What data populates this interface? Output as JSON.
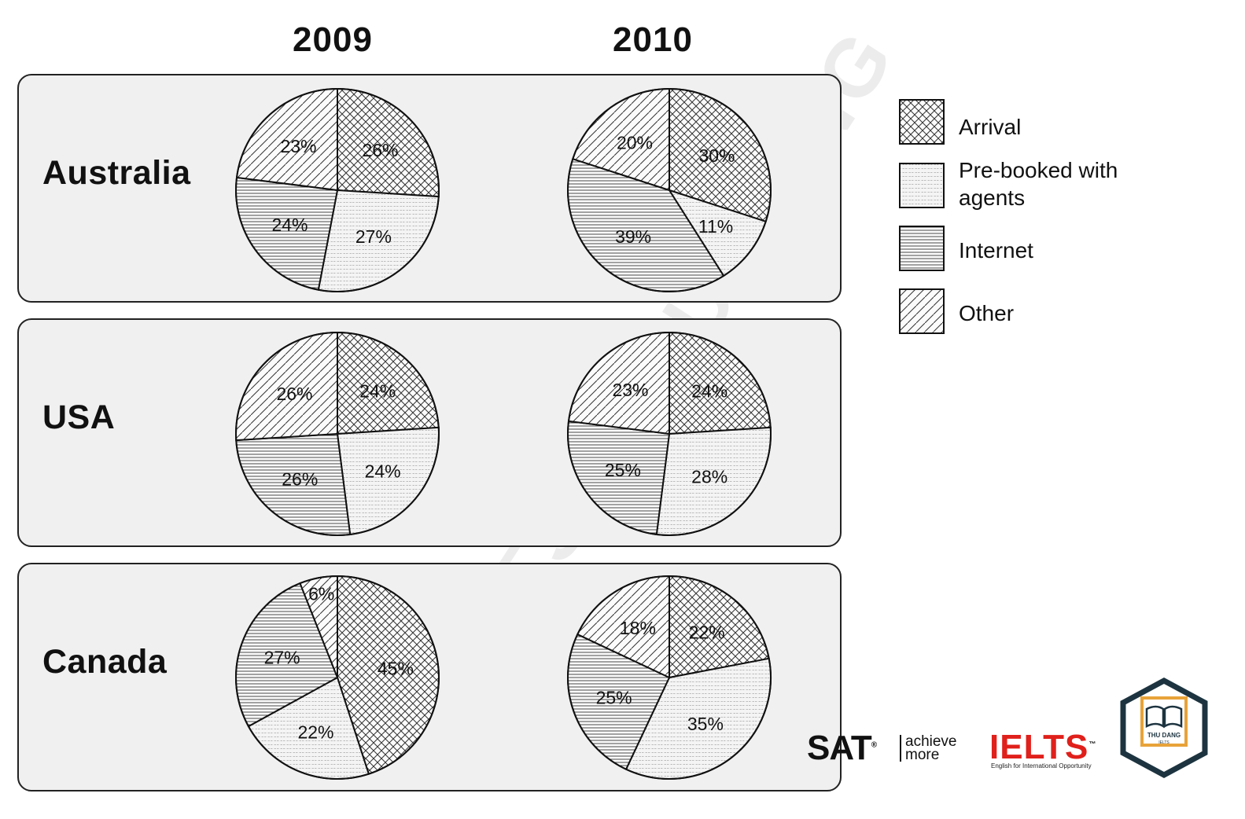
{
  "chart_data": {
    "type": "pie",
    "years": [
      "2009",
      "2010"
    ],
    "categories": [
      "Arrival",
      "Pre-booked with agents",
      "Internet",
      "Other"
    ],
    "legend": [
      "Arrival",
      "Pre-booked with agents",
      "Internet",
      "Other"
    ],
    "legend_position": "right",
    "panels": [
      {
        "country": "Australia",
        "values": {
          "2009": [
            26,
            27,
            24,
            23
          ],
          "2010": [
            30,
            11,
            39,
            20
          ]
        },
        "labels": {
          "2009": [
            "26%",
            "27%",
            "24%",
            "23%"
          ],
          "2010": [
            "30%",
            "11%",
            "39%",
            "20%"
          ]
        }
      },
      {
        "country": "USA",
        "values": {
          "2009": [
            24,
            24,
            26,
            26
          ],
          "2010": [
            24,
            28,
            25,
            23
          ]
        },
        "labels": {
          "2009": [
            "24%",
            "24%",
            "26%",
            "26%"
          ],
          "2010": [
            "24%",
            "28%",
            "25%",
            "23%"
          ]
        }
      },
      {
        "country": "Canada",
        "values": {
          "2009": [
            45,
            22,
            27,
            6
          ],
          "2010": [
            22,
            35,
            25,
            18
          ]
        },
        "labels": {
          "2009": [
            "45%",
            "22%",
            "27%",
            "6%"
          ],
          "2010": [
            "22%",
            "35%",
            "25%",
            "18%"
          ]
        }
      }
    ]
  },
  "watermark": "IELTS - THU ĐANG",
  "logos": {
    "sat": {
      "word": "SAT",
      "mark": "®",
      "tagline_1": "achieve",
      "tagline_2": "more"
    },
    "ielts": {
      "word": "IELTS",
      "mark": "™",
      "subtitle": "English for International Opportunity"
    },
    "thudang": {
      "word": "THU DANG",
      "sub": "IELTS"
    }
  },
  "colors": {
    "outline": "#111111",
    "panel_bg": "#f0f0f0",
    "ielts_red": "#e0201b",
    "logo_orange": "#e8a33a"
  }
}
